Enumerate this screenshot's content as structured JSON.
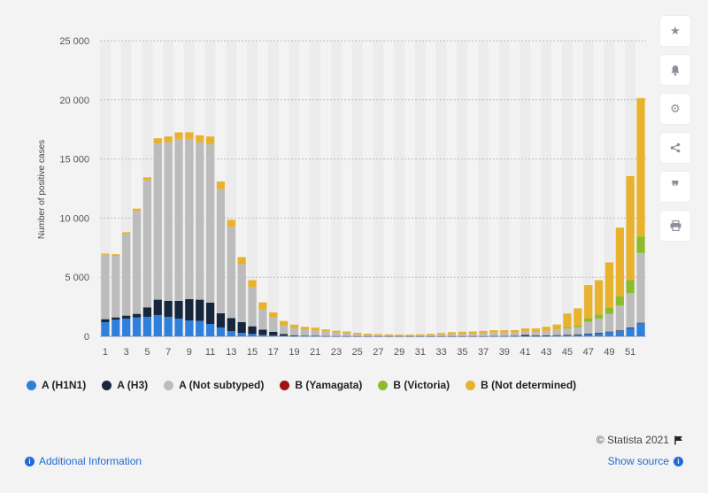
{
  "chart_data": {
    "type": "bar",
    "stacked": true,
    "ylabel": "Number of positive cases",
    "ylim": [
      0,
      25000
    ],
    "yticks": [
      0,
      5000,
      10000,
      15000,
      20000,
      25000
    ],
    "ytick_labels": [
      "0",
      "5 000",
      "10 000",
      "15 000",
      "20 000",
      "25 000"
    ],
    "categories": [
      "1",
      "2",
      "3",
      "4",
      "5",
      "6",
      "7",
      "8",
      "9",
      "10",
      "11",
      "12",
      "13",
      "14",
      "15",
      "16",
      "17",
      "18",
      "19",
      "20",
      "21",
      "22",
      "23",
      "24",
      "25",
      "26",
      "27",
      "28",
      "29",
      "30",
      "31",
      "32",
      "33",
      "34",
      "35",
      "36",
      "37",
      "38",
      "39",
      "40",
      "41",
      "42",
      "43",
      "44",
      "45",
      "46",
      "47",
      "48",
      "49",
      "50",
      "51",
      "52"
    ],
    "xtick_labels": [
      "1",
      "3",
      "5",
      "7",
      "9",
      "11",
      "13",
      "15",
      "17",
      "19",
      "21",
      "23",
      "25",
      "27",
      "29",
      "31",
      "33",
      "35",
      "37",
      "39",
      "41",
      "43",
      "45",
      "47",
      "49",
      "51"
    ],
    "series": [
      {
        "name": "A (H1N1)",
        "color": "#2f7fdc",
        "values": [
          1200,
          1400,
          1500,
          1600,
          1650,
          1800,
          1650,
          1500,
          1350,
          1300,
          1050,
          750,
          450,
          300,
          200,
          120,
          80,
          50,
          30,
          20,
          15,
          10,
          8,
          5,
          5,
          5,
          5,
          5,
          5,
          5,
          5,
          5,
          5,
          5,
          5,
          5,
          5,
          10,
          10,
          10,
          15,
          20,
          30,
          50,
          80,
          120,
          180,
          250,
          350,
          450,
          700,
          1100
        ]
      },
      {
        "name": "A (H3)",
        "color": "#16273d",
        "values": [
          250,
          200,
          250,
          300,
          800,
          1300,
          1350,
          1500,
          1800,
          1800,
          1800,
          1200,
          1100,
          900,
          650,
          450,
          300,
          150,
          60,
          40,
          20,
          10,
          5,
          5,
          5,
          5,
          5,
          5,
          5,
          5,
          5,
          5,
          5,
          5,
          5,
          5,
          5,
          10,
          10,
          20,
          100,
          50,
          50,
          50,
          50,
          50,
          50,
          50,
          50,
          50,
          50,
          50
        ]
      },
      {
        "name": "A (Not subtyped)",
        "color": "#bcbcbc",
        "values": [
          5450,
          5200,
          6900,
          8700,
          10750,
          13200,
          13400,
          13700,
          13550,
          13300,
          13400,
          10500,
          7700,
          4900,
          3300,
          1700,
          1200,
          700,
          600,
          500,
          450,
          370,
          310,
          250,
          150,
          100,
          80,
          60,
          40,
          40,
          60,
          80,
          120,
          160,
          180,
          200,
          250,
          300,
          300,
          300,
          300,
          300,
          380,
          450,
          550,
          600,
          1000,
          1200,
          1500,
          2100,
          2900,
          5900
        ]
      },
      {
        "name": "B (Yamagata)",
        "color": "#9e1414",
        "values": [
          0,
          0,
          0,
          0,
          0,
          0,
          0,
          0,
          0,
          0,
          0,
          0,
          0,
          0,
          0,
          0,
          0,
          0,
          0,
          0,
          0,
          0,
          0,
          0,
          0,
          0,
          0,
          0,
          0,
          0,
          0,
          0,
          0,
          0,
          0,
          0,
          0,
          0,
          0,
          0,
          0,
          0,
          0,
          0,
          0,
          0,
          0,
          0,
          0,
          0,
          0,
          0
        ]
      },
      {
        "name": "B (Victoria)",
        "color": "#8cbc2c",
        "values": [
          0,
          0,
          0,
          0,
          0,
          0,
          0,
          0,
          0,
          0,
          0,
          0,
          0,
          0,
          0,
          0,
          0,
          0,
          0,
          0,
          0,
          0,
          0,
          0,
          0,
          0,
          0,
          0,
          0,
          0,
          0,
          0,
          0,
          0,
          0,
          0,
          0,
          0,
          0,
          0,
          0,
          0,
          0,
          0,
          100,
          150,
          300,
          350,
          550,
          800,
          1100,
          1400
        ]
      },
      {
        "name": "B (Not determined)",
        "color": "#e8b22d",
        "values": [
          100,
          150,
          150,
          200,
          250,
          450,
          500,
          550,
          550,
          600,
          650,
          650,
          600,
          600,
          600,
          600,
          450,
          400,
          300,
          250,
          250,
          200,
          150,
          150,
          140,
          120,
          100,
          100,
          100,
          100,
          100,
          120,
          150,
          180,
          200,
          200,
          200,
          200,
          200,
          200,
          250,
          300,
          350,
          450,
          1150,
          1450,
          2800,
          2900,
          3800,
          5800,
          8800,
          11700
        ]
      }
    ]
  },
  "legend": {
    "items": [
      {
        "label": "A (H1N1)",
        "color": "#2f7fdc"
      },
      {
        "label": "A (H3)",
        "color": "#16273d"
      },
      {
        "label": "A (Not subtyped)",
        "color": "#bcbcbc"
      },
      {
        "label": "B (Yamagata)",
        "color": "#9e1414"
      },
      {
        "label": "B (Victoria)",
        "color": "#8cbc2c"
      },
      {
        "label": "B (Not determined)",
        "color": "#e8b22d"
      }
    ]
  },
  "toolbar": {
    "icons": [
      "star-icon",
      "bell-icon",
      "gear-icon",
      "share-icon",
      "quote-icon",
      "print-icon"
    ]
  },
  "footer": {
    "credit": "© Statista 2021",
    "additional_info": "Additional Information",
    "show_source": "Show source"
  }
}
